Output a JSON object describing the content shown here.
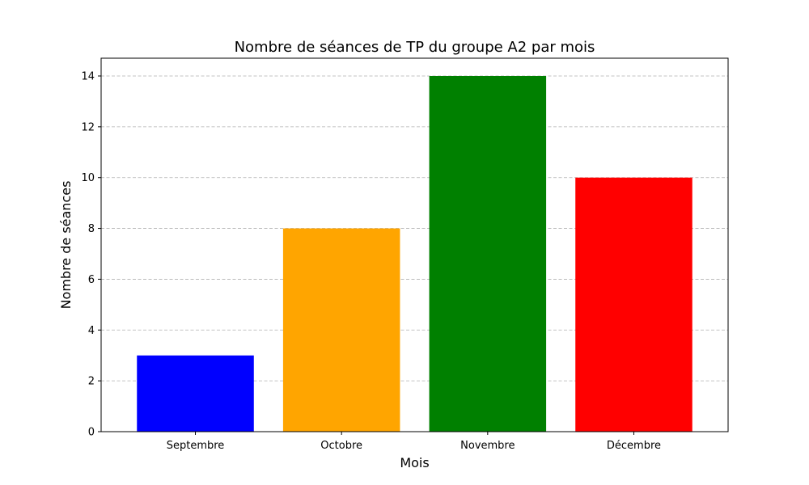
{
  "chart_data": {
    "type": "bar",
    "title": "Nombre de séances de TP du groupe A2 par mois",
    "xlabel": "Mois",
    "ylabel": "Nombre de séances",
    "categories": [
      "Septembre",
      "Octobre",
      "Novembre",
      "Décembre"
    ],
    "values": [
      3,
      8,
      14,
      10
    ],
    "colors": [
      "#0000ff",
      "#ffa500",
      "#008000",
      "#ff0000"
    ],
    "ylim": [
      0,
      14.7
    ],
    "yticks": [
      0,
      2,
      4,
      6,
      8,
      10,
      12,
      14
    ],
    "grid": "horizontal-dashed",
    "legend": "none"
  }
}
